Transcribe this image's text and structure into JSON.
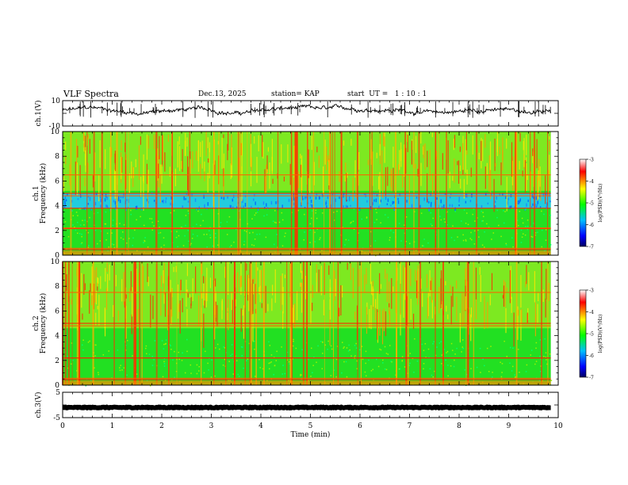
{
  "header": {
    "title": "VLF Spectra",
    "date": "Dec.13, 2025",
    "station": "station= KAP",
    "start": "start  UT =   1 : 10 : 1"
  },
  "chart_data": {
    "type": "heatmap",
    "title": "VLF Spectra",
    "xlabel": "Time  (min)",
    "xlim": [
      0,
      10
    ],
    "xticks": [
      "0",
      "1",
      "2",
      "3",
      "4",
      "5",
      "6",
      "7",
      "8",
      "9",
      "10"
    ],
    "record_end_min": 9.85,
    "panels": [
      {
        "id": "ch1-waveform",
        "kind": "line",
        "ylabel": "ch.1(V)",
        "ylim": [
          -10,
          10
        ],
        "ytick_labels": [
          "10",
          "-10"
        ],
        "mean_value": 2,
        "typical_swing": 4
      },
      {
        "id": "ch1-spectrogram",
        "kind": "heatmap",
        "ylabel": "ch.1 Frequency (kHz)",
        "ylim": [
          0,
          10
        ],
        "yticks": [
          "0",
          "2",
          "4",
          "6",
          "8",
          "10"
        ],
        "features_khz": {
          "blue_band": [
            3.8,
            5.0
          ],
          "bright_lines": [
            0.45,
            0.55,
            2.15,
            2.2,
            3.8,
            4.8,
            5.0,
            6.5
          ]
        }
      },
      {
        "id": "ch2-spectrogram",
        "kind": "heatmap",
        "ylabel": "ch.2 Frequency (kHz)",
        "ylim": [
          0,
          10
        ],
        "yticks": [
          "0",
          "2",
          "4",
          "6",
          "8",
          "10"
        ],
        "features_khz": {
          "bright_lines": [
            0.45,
            0.55,
            2.2,
            4.8,
            5.0,
            7.5
          ]
        }
      },
      {
        "id": "ch3-waveform",
        "kind": "line",
        "ylabel": "ch.3(V)",
        "ylim": [
          -5,
          5
        ],
        "ytick_labels": [
          "5",
          "-5"
        ],
        "mean_value": -1,
        "typical_swing": 0.3
      }
    ],
    "colorbar": {
      "label": "log(PSD)(V²/Hz)",
      "ticks": [
        "-3",
        "-4",
        "-5",
        "-6",
        "-7"
      ],
      "range": [
        -7,
        -3
      ],
      "colors": [
        "#000080",
        "#0000ff",
        "#00bfff",
        "#00ff00",
        "#ffff00",
        "#ff0000",
        "#ffffff"
      ]
    }
  }
}
